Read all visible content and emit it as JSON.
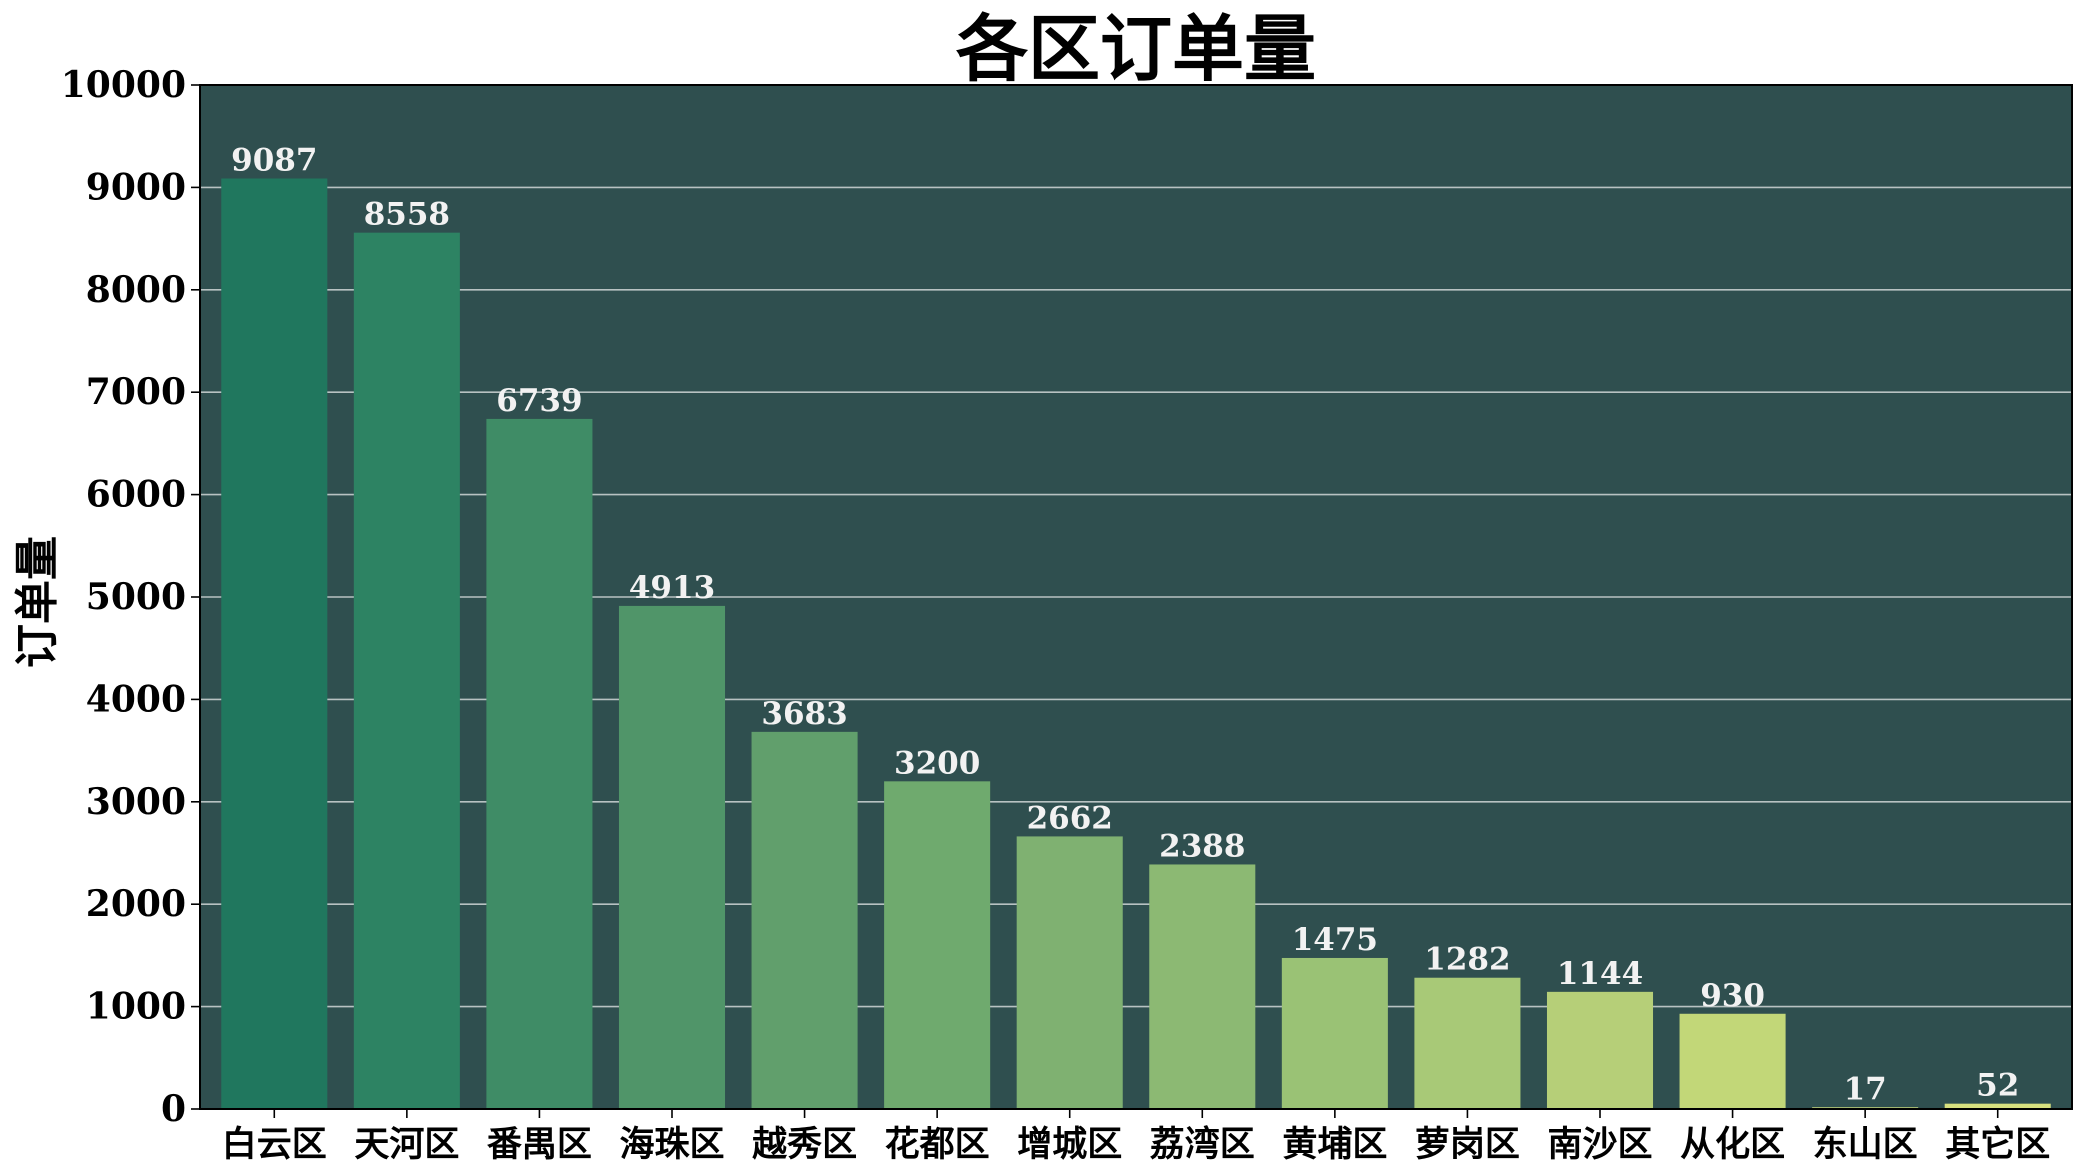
{
  "chart_data": {
    "type": "bar",
    "title": "各区订单量",
    "xlabel": "",
    "ylabel": "订单量",
    "ylim": [
      0,
      10000
    ],
    "yticks": [
      "0",
      "1000",
      "2000",
      "3000",
      "4000",
      "5000",
      "6000",
      "7000",
      "8000",
      "9000",
      "10000"
    ],
    "ytick_values": [
      0,
      1000,
      2000,
      3000,
      4000,
      5000,
      6000,
      7000,
      8000,
      9000,
      10000
    ],
    "grid": true,
    "categories": [
      "白云区",
      "天河区",
      "番禺区",
      "海珠区",
      "越秀区",
      "花都区",
      "增城区",
      "荔湾区",
      "黄埔区",
      "萝岗区",
      "南沙区",
      "从化区",
      "东山区",
      "其它区"
    ],
    "values": [
      9087,
      8558,
      6739,
      4913,
      3683,
      3200,
      2662,
      2388,
      1475,
      1282,
      1144,
      930,
      17,
      52
    ],
    "data_labels": [
      "9087",
      "8558",
      "6739",
      "4913",
      "3683",
      "3200",
      "2662",
      "2388",
      "1475",
      "1282",
      "1144",
      "930",
      "17",
      "52"
    ],
    "colors": {
      "background": "#2f4f4f",
      "grid": "#b8c2c2",
      "bars": [
        "#20775e",
        "#2d8363",
        "#3f8c66",
        "#509569",
        "#619f6c",
        "#6faa6e",
        "#7fb171",
        "#8cb973",
        "#9ac275",
        "#a8c977",
        "#b6cf78",
        "#c2d778",
        "#cbd97b",
        "#d7e17f"
      ]
    }
  }
}
